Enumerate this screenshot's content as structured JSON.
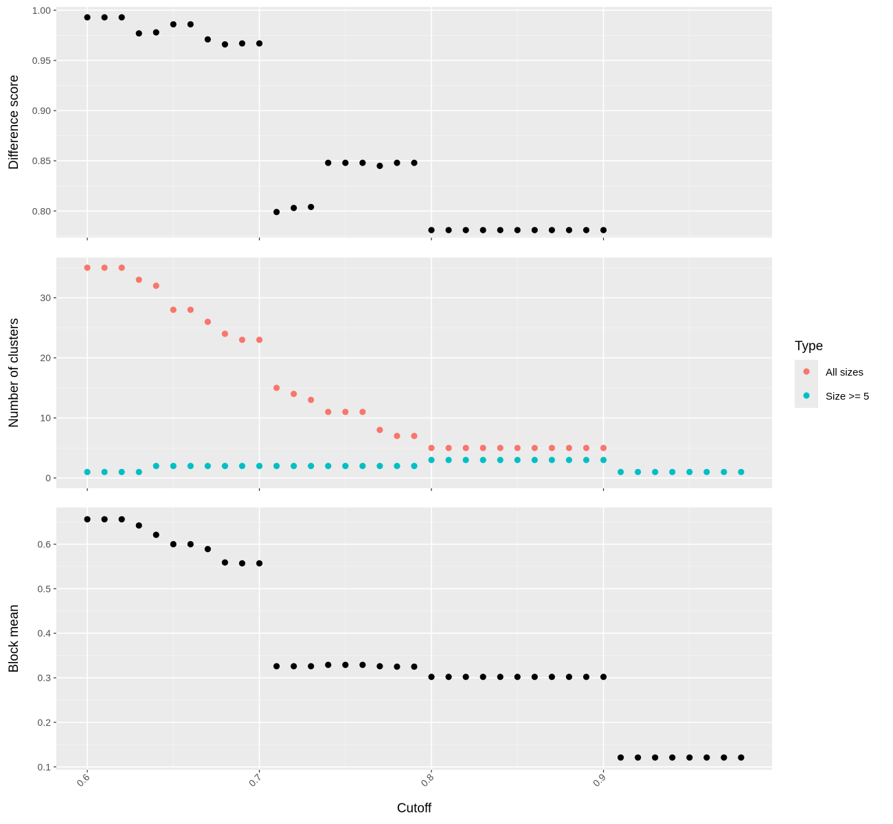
{
  "colors": {
    "panel_bg": "#EBEBEB",
    "grid_major": "#FFFFFF",
    "grid_minor": "#F5F5F5",
    "tick_mark": "#333333",
    "point_default": "#000000",
    "all_sizes": "#F8766D",
    "size_ge_5": "#00BFC4"
  },
  "x_axis": {
    "label": "Cutoff",
    "range": [
      0.582,
      0.998
    ],
    "ticks": [
      0.6,
      0.7,
      0.8,
      0.9
    ],
    "tick_labels": [
      "0.6",
      "0.7",
      "0.8",
      "0.9"
    ],
    "minor_ticks": [
      0.65,
      0.75,
      0.85,
      0.95
    ]
  },
  "legend": {
    "title": "Type",
    "placement": "right",
    "items": [
      {
        "label": "All sizes",
        "color": "#F8766D"
      },
      {
        "label": "Size >= 5",
        "color": "#00BFC4"
      }
    ]
  },
  "chart_data": [
    {
      "type": "scatter",
      "ylabel": "Difference score",
      "ylim": [
        0.7735,
        1.0034
      ],
      "yticks": [
        0.8,
        0.85,
        0.9,
        0.95,
        1.0
      ],
      "ytick_labels": [
        "0.80",
        "0.85",
        "0.90",
        "0.95",
        "1.00"
      ],
      "grid": true,
      "series": [
        {
          "color": "#000000",
          "x": [
            0.6,
            0.61,
            0.62,
            0.63,
            0.64,
            0.65,
            0.66,
            0.67,
            0.68,
            0.69,
            0.7,
            0.71,
            0.72,
            0.73,
            0.74,
            0.75,
            0.76,
            0.77,
            0.78,
            0.79,
            0.8,
            0.81,
            0.82,
            0.83,
            0.84,
            0.85,
            0.86,
            0.87,
            0.88,
            0.89,
            0.9
          ],
          "y": [
            0.993,
            0.993,
            0.993,
            0.977,
            0.978,
            0.986,
            0.986,
            0.971,
            0.966,
            0.967,
            0.967,
            0.799,
            0.803,
            0.804,
            0.848,
            0.848,
            0.848,
            0.845,
            0.848,
            0.848,
            0.781,
            0.781,
            0.781,
            0.781,
            0.781,
            0.781,
            0.781,
            0.781,
            0.781,
            0.781,
            0.781
          ]
        }
      ]
    },
    {
      "type": "scatter",
      "ylabel": "Number of clusters",
      "ylim": [
        -1.7,
        36.7
      ],
      "yticks": [
        0,
        10,
        20,
        30
      ],
      "ytick_labels": [
        "0",
        "10",
        "20",
        "30"
      ],
      "grid": true,
      "series": [
        {
          "name": "All sizes",
          "color": "#F8766D",
          "x": [
            0.6,
            0.61,
            0.62,
            0.63,
            0.64,
            0.65,
            0.66,
            0.67,
            0.68,
            0.69,
            0.7,
            0.71,
            0.72,
            0.73,
            0.74,
            0.75,
            0.76,
            0.77,
            0.78,
            0.79,
            0.8,
            0.81,
            0.82,
            0.83,
            0.84,
            0.85,
            0.86,
            0.87,
            0.88,
            0.89,
            0.9
          ],
          "y": [
            35,
            35,
            35,
            33,
            32,
            28,
            28,
            26,
            24,
            23,
            23,
            15,
            14,
            13,
            11,
            11,
            11,
            8,
            7,
            7,
            5,
            5,
            5,
            5,
            5,
            5,
            5,
            5,
            5,
            5,
            5
          ]
        },
        {
          "name": "Size >= 5",
          "color": "#00BFC4",
          "x": [
            0.6,
            0.61,
            0.62,
            0.63,
            0.64,
            0.65,
            0.66,
            0.67,
            0.68,
            0.69,
            0.7,
            0.71,
            0.72,
            0.73,
            0.74,
            0.75,
            0.76,
            0.77,
            0.78,
            0.79,
            0.8,
            0.81,
            0.82,
            0.83,
            0.84,
            0.85,
            0.86,
            0.87,
            0.88,
            0.89,
            0.9,
            0.91,
            0.92,
            0.93,
            0.94,
            0.95,
            0.96,
            0.97,
            0.98
          ],
          "y": [
            1,
            1,
            1,
            1,
            2,
            2,
            2,
            2,
            2,
            2,
            2,
            2,
            2,
            2,
            2,
            2,
            2,
            2,
            2,
            2,
            3,
            3,
            3,
            3,
            3,
            3,
            3,
            3,
            3,
            3,
            3,
            1,
            1,
            1,
            1,
            1,
            1,
            1,
            1
          ]
        }
      ]
    },
    {
      "type": "scatter",
      "ylabel": "Block mean",
      "ylim": [
        0.0935,
        0.6825
      ],
      "yticks": [
        0.1,
        0.2,
        0.3,
        0.4,
        0.5,
        0.6
      ],
      "ytick_labels": [
        "0.1",
        "0.2",
        "0.3",
        "0.4",
        "0.5",
        "0.6"
      ],
      "grid": true,
      "series": [
        {
          "color": "#000000",
          "x": [
            0.6,
            0.61,
            0.62,
            0.63,
            0.64,
            0.65,
            0.66,
            0.67,
            0.68,
            0.69,
            0.7,
            0.71,
            0.72,
            0.73,
            0.74,
            0.75,
            0.76,
            0.77,
            0.78,
            0.79,
            0.8,
            0.81,
            0.82,
            0.83,
            0.84,
            0.85,
            0.86,
            0.87,
            0.88,
            0.89,
            0.9,
            0.91,
            0.92,
            0.93,
            0.94,
            0.95,
            0.96,
            0.97,
            0.98
          ],
          "y": [
            0.656,
            0.656,
            0.656,
            0.642,
            0.621,
            0.6,
            0.6,
            0.589,
            0.559,
            0.557,
            0.557,
            0.326,
            0.326,
            0.326,
            0.329,
            0.329,
            0.329,
            0.326,
            0.325,
            0.325,
            0.302,
            0.302,
            0.302,
            0.302,
            0.302,
            0.302,
            0.302,
            0.302,
            0.302,
            0.302,
            0.302,
            0.121,
            0.121,
            0.121,
            0.121,
            0.121,
            0.121,
            0.121,
            0.121
          ]
        }
      ]
    }
  ]
}
